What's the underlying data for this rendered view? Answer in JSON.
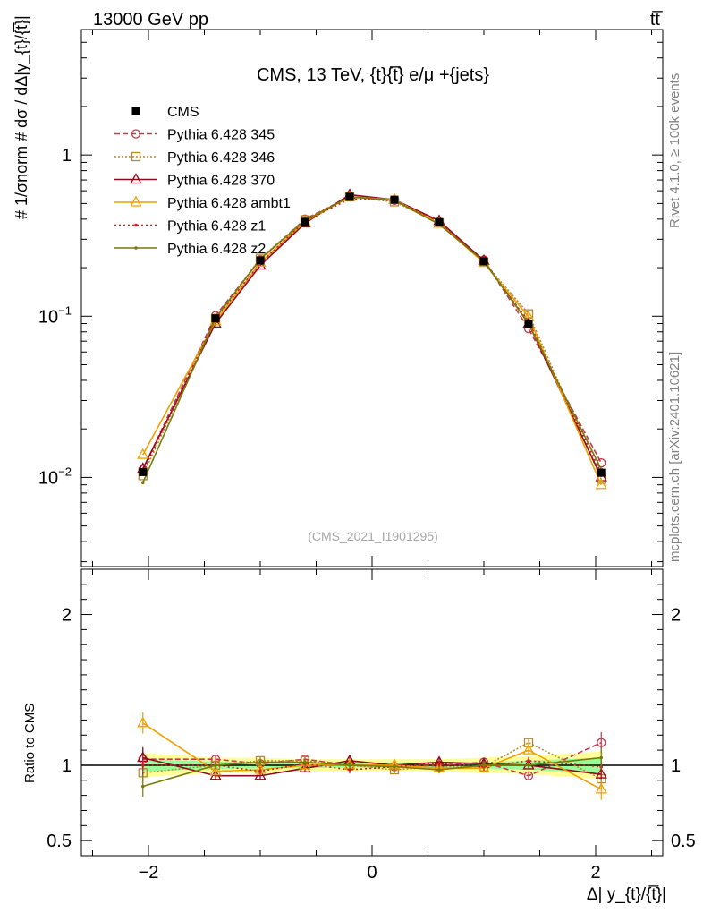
{
  "header": {
    "left": "13000 GeV pp",
    "right": "tt̅"
  },
  "plot_title": "CMS, 13 TeV, {t}{t̅} e/μ +{jets}",
  "watermark": "(CMS_2021_I1901295)",
  "side_labels": {
    "rivet": "Rivet 4.1.0, ≥ 100k events",
    "site": "mcplots.cern.ch [arXiv:2401.10621]"
  },
  "y_label_main": "# 1/σnorm # dσ / dΔ|y_{t}/{t̅}|",
  "y_label_ratio": "Ratio to CMS",
  "x_label": "Δ| y_{t}/{t̅}|",
  "chart_data": {
    "type": "line",
    "x": [
      -2.05,
      -1.4,
      -1.0,
      -0.6,
      -0.2,
      0.2,
      0.6,
      1.0,
      1.4,
      2.05
    ],
    "xlim": [
      -2.6,
      2.6
    ],
    "ylim_main": [
      0.0028,
      6
    ],
    "ylim_ratio": [
      0.4,
      2.3
    ],
    "main_ticks": [
      {
        "v": 0.01,
        "base": "10",
        "exp": "−2"
      },
      {
        "v": 0.1,
        "base": "10",
        "exp": "−1"
      },
      {
        "v": 1,
        "base": "1",
        "exp": ""
      }
    ],
    "x_ticks": [
      {
        "v": -2,
        "label": "−2"
      },
      {
        "v": 0,
        "label": "0"
      },
      {
        "v": 2,
        "label": "2"
      }
    ],
    "ratio_ticks": [
      {
        "v": 0.5,
        "label": "0.5"
      },
      {
        "v": 1,
        "label": "1"
      },
      {
        "v": 2,
        "label": "2"
      }
    ],
    "data": {
      "name": "CMS",
      "values": [
        0.0108,
        0.097,
        0.222,
        0.385,
        0.55,
        0.528,
        0.383,
        0.219,
        0.09,
        0.0107
      ]
    },
    "series": [
      {
        "name": "Pythia 6.428 345",
        "color": "#c0394f",
        "dash": "6,3",
        "marker": "circle",
        "ratio": [
          1.04,
          1.04,
          1.01,
          1.04,
          1.0,
          0.99,
          1.0,
          1.02,
          0.93,
          1.15
        ]
      },
      {
        "name": "Pythia 6.428 346",
        "color": "#b5892f",
        "dash": "2,2",
        "marker": "square",
        "ratio": [
          0.95,
          1.0,
          1.03,
          1.03,
          1.0,
          0.97,
          0.99,
          0.99,
          1.15,
          0.91
        ]
      },
      {
        "name": "Pythia 6.428 370",
        "color": "#8b0a1e",
        "dash": "",
        "marker": "triangle",
        "ratio": [
          1.05,
          0.93,
          0.93,
          0.98,
          1.03,
          1.0,
          1.02,
          1.01,
          1.0,
          0.94
        ]
      },
      {
        "name": "Pythia 6.428 ambt1",
        "color": "#f0a000",
        "dash": "",
        "marker": "triangle",
        "ratio": [
          1.28,
          0.96,
          0.97,
          1.0,
          1.0,
          1.0,
          0.98,
          0.98,
          1.1,
          0.84
        ]
      },
      {
        "name": "Pythia 6.428 z1",
        "color": "#cc1c1c",
        "dash": "2,3",
        "marker": "dot",
        "ratio": [
          1.0,
          1.0,
          0.96,
          1.01,
          0.97,
          0.99,
          1.01,
          0.99,
          1.03,
          0.99
        ]
      },
      {
        "name": "Pythia 6.428 z2",
        "color": "#7a7a0a",
        "dash": "",
        "marker": "dot",
        "ratio": [
          0.86,
          1.0,
          1.02,
          1.02,
          1.0,
          0.99,
          0.97,
          1.0,
          1.0,
          1.05
        ]
      }
    ]
  }
}
